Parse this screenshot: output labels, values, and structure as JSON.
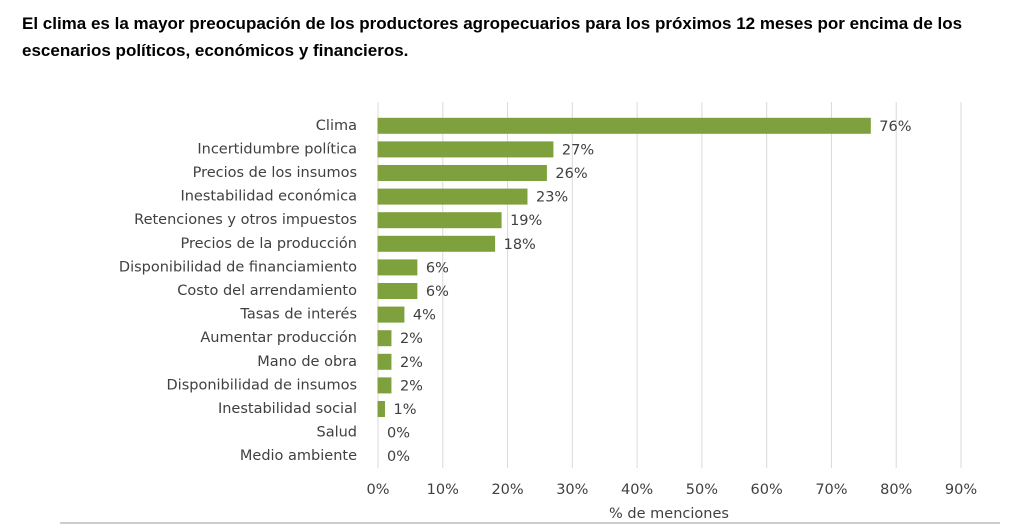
{
  "chart_data": {
    "type": "bar",
    "orientation": "horizontal",
    "title": "El clima es la mayor preocupación de los productores agropecuarios para los próximos 12 meses por encima de los escenarios políticos, económicos y financieros.",
    "x_label": "% de menciones",
    "categories": [
      "Clima",
      "Incertidumbre política",
      "Precios de los insumos",
      "Inestabilidad económica",
      "Retenciones y otros impuestos",
      "Precios de la producción",
      "Disponibilidad de financiamiento",
      "Costo del arrendamiento",
      "Tasas de interés",
      "Aumentar producción",
      "Mano de obra",
      "Disponibilidad de insumos",
      "Inestabilidad social",
      "Salud",
      "Medio ambiente"
    ],
    "values": [
      76,
      27,
      26,
      23,
      19,
      18,
      6,
      6,
      4,
      2,
      2,
      2,
      1,
      0,
      0
    ],
    "value_labels": [
      "76%",
      "27%",
      "26%",
      "23%",
      "19%",
      "18%",
      "6%",
      "6%",
      "4%",
      "2%",
      "2%",
      "2%",
      "1%",
      "0%",
      "0%"
    ],
    "color": "#7ea13d",
    "xlim": [
      0,
      90
    ],
    "xticks": [
      {
        "value": 0,
        "label": "0%"
      },
      {
        "value": 10,
        "label": "10%"
      },
      {
        "value": 20,
        "label": "20%"
      },
      {
        "value": 30,
        "label": "30%"
      },
      {
        "value": 40,
        "label": "40%"
      },
      {
        "value": 50,
        "label": "50%"
      },
      {
        "value": 60,
        "label": "60%"
      },
      {
        "value": 70,
        "label": "70%"
      },
      {
        "value": 80,
        "label": "80%"
      },
      {
        "value": 90,
        "label": "90%"
      }
    ],
    "grid": true
  }
}
